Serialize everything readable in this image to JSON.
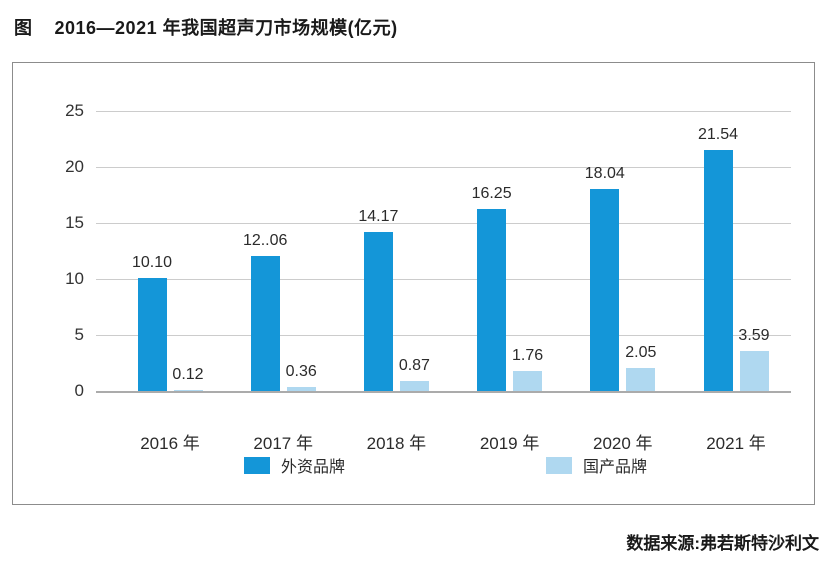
{
  "page": {
    "figure_label": "图",
    "title": "2016—2021 年我国超声刀市场规模(亿元)",
    "source": "数据来源:弗若斯特沙利文"
  },
  "chart_data": {
    "type": "bar",
    "title": "2016—2021 年我国超声刀市场规模(亿元)",
    "categories": [
      "2016 年",
      "2017 年",
      "2018 年",
      "2019 年",
      "2020 年",
      "2021 年"
    ],
    "series": [
      {
        "name": "外资品牌",
        "color": "#1496d8",
        "values": [
          10.1,
          12.06,
          14.17,
          16.25,
          18.04,
          21.54
        ],
        "value_labels": [
          "10.10",
          "12..06",
          "14.17",
          "16.25",
          "18.04",
          "21.54"
        ]
      },
      {
        "name": "国产品牌",
        "color": "#afd8f0",
        "values": [
          0.12,
          0.36,
          0.87,
          1.76,
          2.05,
          3.59
        ],
        "value_labels": [
          "0.12",
          "0.36",
          "0.87",
          "1.76",
          "2.05",
          "3.59"
        ]
      }
    ],
    "xlabel": "",
    "ylabel": "",
    "ylim": [
      0,
      25
    ],
    "yticks": [
      0,
      5,
      10,
      15,
      20,
      25
    ],
    "grid": true,
    "legend_position": "bottom",
    "gridline_color": "#cccccc",
    "baseline_color": "#ababab"
  }
}
